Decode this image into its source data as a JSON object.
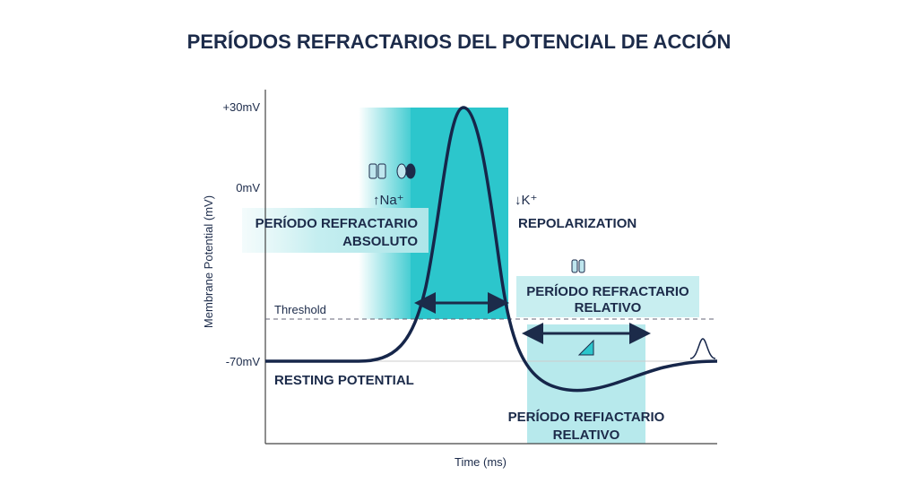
{
  "title": "PERÍODOS REFRACTARIOS DEL POTENCIAL DE ACCIÓN",
  "axis": {
    "y_label": "Membrane Potential (mV)",
    "x_label": "Time (ms)",
    "ticks": [
      "+30mV",
      "0mV",
      "-70mV"
    ],
    "threshold": "Threshold"
  },
  "labels": {
    "na": "↑Na⁺",
    "k": "↓K⁺",
    "absolute": [
      "PERÍODO REFRACTARIO",
      "ABSOLUTO"
    ],
    "repolarization": "REPOLARIZATION",
    "relative_upper": [
      "PERÍODO REFRACTARIO",
      "RELATIVO"
    ],
    "relative_lower": [
      "PERÍODO REFIACTARIO",
      "RELATIVO"
    ],
    "resting": "RESTING POTENTIAL"
  }
}
